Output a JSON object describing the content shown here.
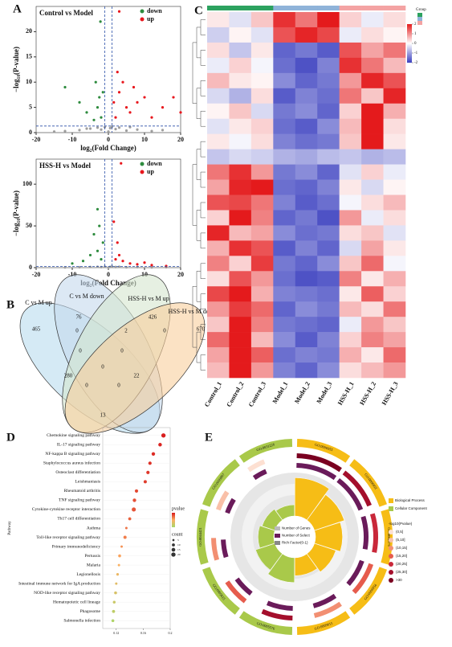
{
  "panel_labels": [
    "A",
    "B",
    "C",
    "D",
    "E"
  ],
  "chart_data": [
    {
      "type": "scatter",
      "title": "Control vs Model",
      "xlabel": "log₂(Fold Change)",
      "ylabel": "−log₁₀(P-value)",
      "xlim": [
        -20,
        20
      ],
      "ylim": [
        0,
        25
      ],
      "xticks": [
        -20,
        -10,
        0,
        10,
        20
      ],
      "yticks": [
        0,
        5,
        10,
        15,
        20
      ],
      "vlines": [
        -1,
        1
      ],
      "hline": 1.3,
      "series": [
        {
          "color": "#9e9e9e",
          "x": [
            -12,
            -8,
            -5,
            -3,
            -2,
            -1,
            0,
            0.5,
            1,
            2,
            3,
            5,
            8,
            12,
            -15,
            15,
            6,
            -6
          ],
          "values": [
            0.3,
            0.5,
            0.8,
            1,
            0.6,
            1.1,
            0.2,
            0.9,
            1.2,
            0.7,
            1,
            0.4,
            0.6,
            0.3,
            0.2,
            0.5,
            1.1,
            0.8
          ]
        },
        {
          "name": "down",
          "color": "#2e8b3e",
          "x": [
            -2,
            -3,
            -2.5,
            -4,
            -6,
            -1.5,
            -8,
            -3.5,
            -12,
            -2.2
          ],
          "values": [
            3,
            5,
            7,
            2.5,
            4,
            8,
            6,
            10,
            9,
            22
          ]
        },
        {
          "name": "up",
          "color": "#e8171d",
          "x": [
            2,
            3,
            4,
            5,
            6,
            8,
            10,
            12,
            15,
            18,
            3,
            7,
            2.5,
            1.5,
            20
          ],
          "values": [
            3,
            8,
            10,
            5,
            4,
            6,
            7,
            3,
            5,
            7,
            24,
            9,
            12,
            6,
            4
          ]
        }
      ]
    },
    {
      "type": "scatter",
      "title": "HSS-H vs Model",
      "xlabel": "log₂(Fold Change)",
      "ylabel": "−log₁₀(P-value)",
      "xlim": [
        -20,
        20
      ],
      "ylim": [
        0,
        130
      ],
      "xticks": [
        -20,
        -10,
        0,
        10,
        20
      ],
      "yticks": [
        0,
        50,
        100
      ],
      "vlines": [
        -1,
        1
      ],
      "hline": 1.3,
      "series": [
        {
          "color": "#9e9e9e",
          "x": [
            -12,
            -8,
            -5,
            -3,
            -2,
            -1,
            0,
            0.5,
            1,
            2,
            3,
            5,
            8,
            12,
            16
          ],
          "values": [
            0.3,
            0.5,
            0.8,
            1,
            0.6,
            1.1,
            0.2,
            0.9,
            1.2,
            0.7,
            1,
            0.4,
            0.6,
            0.3,
            0.5
          ]
        },
        {
          "name": "down",
          "color": "#2e8b3e",
          "x": [
            -2,
            -3,
            -4,
            -2.5,
            -5,
            -7,
            -10,
            -1.5,
            -3
          ],
          "values": [
            10,
            20,
            40,
            50,
            15,
            8,
            5,
            30,
            70
          ]
        },
        {
          "name": "up",
          "color": "#e8171d",
          "x": [
            2,
            3,
            4,
            6,
            8,
            12,
            2.5,
            1.5,
            3.5,
            10,
            16
          ],
          "values": [
            10,
            15,
            8,
            5,
            4,
            3,
            30,
            55,
            125,
            6,
            2
          ]
        }
      ]
    },
    {
      "type": "venn",
      "sets": [
        "C vs M up",
        "C vs M down",
        "HSS-H vs M up",
        "HSS-H vs M down"
      ],
      "colors": [
        "#b9dcef",
        "#c4d9ec",
        "#d5e6cf",
        "#f9cf9c"
      ],
      "regions": [
        465,
        76,
        426,
        670,
        0,
        2,
        0,
        0,
        0,
        0,
        280,
        22,
        0,
        0,
        13
      ]
    },
    {
      "type": "heatmap",
      "columns": [
        "Control_1",
        "Control_2",
        "Control_3",
        "Model_1",
        "Model_2",
        "Model_3",
        "HSS-H_1",
        "HSS-H_2",
        "HSS-H_3"
      ],
      "column_groups": [
        0,
        0,
        0,
        1,
        1,
        1,
        2,
        2,
        2
      ],
      "group_title": "Group",
      "group_colors": [
        "#2ca25f",
        "#8fb3d9",
        "#f4a3a3"
      ],
      "colors": [
        "#3a3fbf",
        "#ffffff",
        "#e41a1c"
      ],
      "clim": [
        -2,
        2
      ],
      "scale_ticks": [
        2,
        1,
        0,
        -1,
        -2
      ],
      "values": [
        [
          0.2,
          -0.3,
          0.5,
          1.8,
          1.2,
          2,
          0.4,
          -0.2,
          0.3
        ],
        [
          -0.5,
          0.1,
          -0.3,
          1.5,
          1.9,
          1.6,
          -0.2,
          0.3,
          0.1
        ],
        [
          0.3,
          -0.6,
          0.2,
          -1.6,
          -1.4,
          -1.7,
          1.5,
          0.8,
          1.2
        ],
        [
          -0.2,
          0.4,
          -0.1,
          -1.5,
          -1.8,
          -1.3,
          1.8,
          1.2,
          0.6
        ],
        [
          0.6,
          0.2,
          0.1,
          -1.2,
          -1.6,
          -1.4,
          0.9,
          1.9,
          1.5
        ],
        [
          -0.4,
          -0.8,
          0.3,
          -1.7,
          -1.3,
          -1.5,
          1.2,
          0.5,
          1.9
        ],
        [
          0.1,
          0.5,
          -0.4,
          -1.4,
          -1.2,
          -1.6,
          0.4,
          2,
          0.7
        ],
        [
          -0.3,
          0.2,
          0.4,
          -1.5,
          -1.7,
          -1.2,
          0.6,
          2,
          0.3
        ],
        [
          0.2,
          -0.1,
          0.3,
          -1.3,
          -1.5,
          -1.4,
          0.5,
          2,
          0.2
        ],
        [
          -0.6,
          -0.4,
          -0.5,
          -0.8,
          -0.9,
          -0.7,
          -0.6,
          -0.8,
          -0.7
        ],
        [
          1.2,
          1.8,
          0.9,
          -1.4,
          -1.2,
          -1.6,
          -0.3,
          0.4,
          -0.2
        ],
        [
          0.8,
          1.9,
          2,
          -1.5,
          -1.6,
          -1.3,
          0.2,
          -0.4,
          0.1
        ],
        [
          1.5,
          1.6,
          1.2,
          -1.3,
          -1.7,
          -1.5,
          -0.1,
          0.3,
          0.6
        ],
        [
          0.4,
          2,
          1.1,
          -1.6,
          -1.4,
          -1.8,
          0.9,
          -0.2,
          0.3
        ],
        [
          1.9,
          0.6,
          0.8,
          -1.2,
          -1.5,
          -1.4,
          0.3,
          0.5,
          -0.3
        ],
        [
          0.7,
          1.8,
          1.5,
          -1.7,
          -1.3,
          -1.6,
          -0.4,
          0.8,
          0.2
        ],
        [
          1.1,
          0.4,
          1.7,
          -1.4,
          -1.6,
          -1.2,
          0.5,
          1.3,
          -0.1
        ],
        [
          0.3,
          1.5,
          0.9,
          -1.5,
          -1.8,
          -1.7,
          1.1,
          0.2,
          0.7
        ],
        [
          1.6,
          2,
          0.7,
          -1.3,
          -1.4,
          -1.5,
          0.2,
          1.4,
          0.4
        ],
        [
          0.9,
          1.7,
          1.3,
          -1.6,
          -1.2,
          -1.4,
          0.6,
          0.3,
          1.2
        ],
        [
          0.5,
          2,
          1.1,
          -1.4,
          -1.5,
          -1.6,
          -0.2,
          0.9,
          0.5
        ],
        [
          1.3,
          2,
          0.6,
          -1.2,
          -1.7,
          -1.3,
          0.4,
          1.1,
          0.8
        ],
        [
          0.8,
          2,
          1.4,
          -1.5,
          -1.3,
          -1.4,
          0.7,
          0.2,
          1.3
        ],
        [
          0.6,
          2,
          0.9,
          -1.3,
          -1.6,
          -1.2,
          0.3,
          0.6,
          0.9
        ]
      ]
    },
    {
      "type": "dot",
      "ylabel": "Pathway",
      "categories": [
        "Chemokine signaling pathway",
        "IL-17 signaling pathway",
        "NF-kappa B signaling pathway",
        "Staphylococcus aureus infection",
        "Osteoclast differentiation",
        "Leishmaniasis",
        "Rheumatoid arthritis",
        "TNF signaling pathway",
        "Cytokine-cytokine receptor interaction",
        "Th17 cell differentiation",
        "Asthma",
        "Toll-like receptor signaling pathway",
        "Primary immunodeficiency",
        "Pertussis",
        "Malaria",
        "Legionellosis",
        "Intestinal immune network for IgA production",
        "NOD-like receptor signaling pathway",
        "Hematopoietic cell lineage",
        "Phagosome",
        "Salmonella infection"
      ],
      "values": [
        0.19,
        0.185,
        0.175,
        0.17,
        0.167,
        0.163,
        0.15,
        0.147,
        0.146,
        0.14,
        0.135,
        0.133,
        0.128,
        0.125,
        0.124,
        0.122,
        0.12,
        0.119,
        0.117,
        0.116,
        0.115
      ],
      "counts": [
        20,
        14,
        13,
        12,
        12,
        11,
        12,
        13,
        18,
        10,
        6,
        11,
        6,
        9,
        6,
        7,
        6,
        9,
        8,
        10,
        9
      ],
      "pvalues": [
        0.001,
        0.002,
        0.003,
        0.004,
        0.005,
        0.006,
        0.008,
        0.009,
        0.01,
        0.012,
        0.015,
        0.017,
        0.02,
        0.023,
        0.026,
        0.03,
        0.033,
        0.036,
        0.04,
        0.043,
        0.047
      ],
      "pvalue_lim": [
        0,
        0.05
      ],
      "pvalue_colors": [
        "#d7191c",
        "#fdae61",
        "#a6d96a"
      ],
      "xlim": [
        0.1,
        0.2
      ],
      "xticks": [
        0.12,
        0.16,
        0.2
      ],
      "legend_pvalue": "pvalue",
      "legend_count": "count",
      "count_ticks": [
        5,
        10,
        15,
        20
      ]
    },
    {
      "type": "circos",
      "terms": [
        "GO:0006955",
        "GO:0006952",
        "GO:0002376",
        "GO:0006954",
        "GO:0009615",
        "GO:0005576",
        "GO:0005615",
        "GO:0044421",
        "GO:0009897",
        "GO:0031226"
      ],
      "groups": [
        0,
        0,
        0,
        0,
        0,
        1,
        1,
        1,
        1,
        1
      ],
      "group_names": [
        "Biological Process",
        "Cellular Component"
      ],
      "group_colors": [
        "#f6bd16",
        "#a9c94a"
      ],
      "genes": [
        420,
        380,
        350,
        300,
        260,
        280,
        240,
        200,
        180,
        160
      ],
      "selected": [
        60,
        55,
        48,
        40,
        35,
        38,
        30,
        26,
        22,
        20
      ],
      "rich_factor": [
        0.85,
        0.7,
        0.6,
        0.5,
        0.4,
        0.55,
        0.45,
        0.35,
        0.3,
        0.25
      ],
      "neglogp": [
        32,
        28,
        24,
        18,
        12,
        26,
        20,
        14,
        8,
        4
      ],
      "ring_names": [
        "Number of Genes",
        "Number of Select",
        "Rich Factor(0-1)"
      ],
      "logp_title": "-log10(Pvalue)",
      "logp_bins": [
        "(0,5]",
        "(5,10]",
        "(10,15]",
        "(15,20]",
        "(20,25]",
        "(25,30]",
        ">30"
      ],
      "logp_edges": [
        0,
        5,
        10,
        15,
        20,
        25,
        30
      ],
      "logp_colors": [
        "#fde0d2",
        "#f9c0a8",
        "#f28f72",
        "#e65c4d",
        "#c9283a",
        "#a40f2c",
        "#7a0020"
      ]
    }
  ]
}
